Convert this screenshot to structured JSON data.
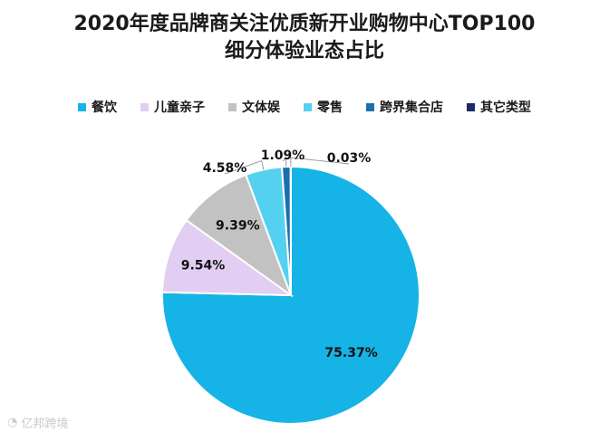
{
  "chart_data": {
    "type": "pie",
    "title_line1": "2020年度品牌商关注优质新开业购物中心TOP100",
    "title_line2": "细分体验业态占比",
    "series": [
      {
        "name": "餐饮",
        "value": 75.37,
        "label": "75.37%",
        "color": "#16b3e6"
      },
      {
        "name": "儿童亲子",
        "value": 9.54,
        "label": "9.54%",
        "color": "#e2cef2"
      },
      {
        "name": "文体娱",
        "value": 9.39,
        "label": "9.39%",
        "color": "#c2c2c2"
      },
      {
        "name": "零售",
        "value": 4.58,
        "label": "4.58%",
        "color": "#55d1f0"
      },
      {
        "name": "跨界集合店",
        "value": 1.09,
        "label": "1.09%",
        "color": "#1b6fb0"
      },
      {
        "name": "其它类型",
        "value": 0.03,
        "label": "0.03%",
        "color": "#1f2a66"
      }
    ],
    "legend_position": "top"
  },
  "watermark": "亿邦跨境"
}
